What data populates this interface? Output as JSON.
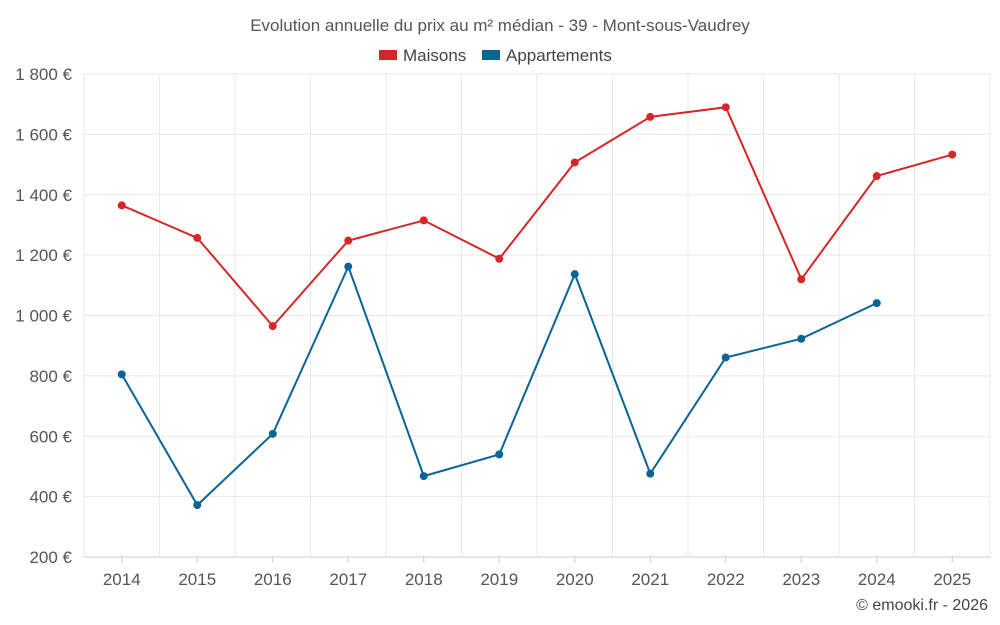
{
  "chart_data": {
    "type": "line",
    "title": "Evolution annuelle du prix au m² médian - 39 - Mont-sous-Vaudrey",
    "categories": [
      "2014",
      "2015",
      "2016",
      "2017",
      "2018",
      "2019",
      "2020",
      "2021",
      "2022",
      "2023",
      "2024",
      "2025"
    ],
    "series": [
      {
        "name": "Maisons",
        "color": "#d62728",
        "values": [
          1365,
          1257,
          965,
          1248,
          1315,
          1188,
          1507,
          1658,
          1690,
          1120,
          1462,
          1533
        ]
      },
      {
        "name": "Appartements",
        "color": "#0a6496",
        "values": [
          805,
          372,
          608,
          1162,
          null,
          null,
          1137,
          476,
          861,
          923,
          1041,
          null
        ]
      }
    ],
    "apartments_extra": {
      "note": ""
    },
    "y_ticks": [
      "200 €",
      "400 €",
      "600 €",
      "800 €",
      "1 000 €",
      "1 200 €",
      "1 400 €",
      "1 600 €",
      "1 800 €"
    ],
    "y_tick_values": [
      200,
      400,
      600,
      800,
      1000,
      1200,
      1400,
      1600,
      1800
    ],
    "ylim": [
      200,
      1850
    ],
    "grid": true,
    "legend_position": "top-center"
  },
  "credit": "© emooki.fr - 2026"
}
